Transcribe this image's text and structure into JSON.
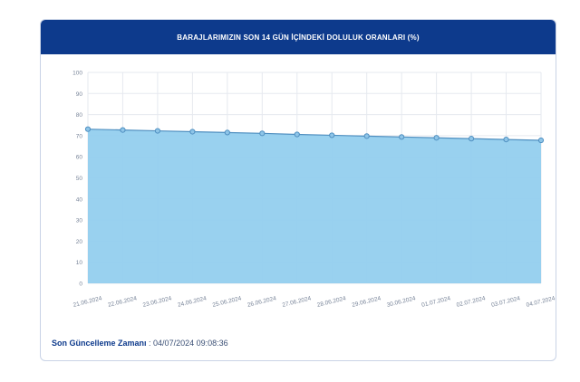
{
  "header": {
    "title": "BARAJLARIMIZIN SON 14 GÜN İÇİNDEKİ DOLULUK ORANLARI (%)"
  },
  "footer": {
    "label": "Son Güncelleme Zamanı",
    "separator": " : ",
    "value": "04/07/2024 09:08:36"
  },
  "colors": {
    "header_bg": "#0d3a8c",
    "area_fill": "#93cfee",
    "line": "#4f8fc0",
    "point_fill": "#8ec5e8"
  },
  "chart_data": {
    "type": "area",
    "title": "BARAJLARIMIZIN SON 14 GÜN İÇİNDEKİ DOLULUK ORANLARI (%)",
    "categories": [
      "21.06.2024",
      "22.06.2024",
      "23.06.2024",
      "24.06.2024",
      "25.06.2024",
      "26.06.2024",
      "27.06.2024",
      "28.06.2024",
      "29.06.2024",
      "30.06.2024",
      "01.07.2024",
      "02.07.2024",
      "03.07.2024",
      "04.07.2024"
    ],
    "values": [
      73.1,
      72.7,
      72.3,
      71.9,
      71.5,
      71.1,
      70.6,
      70.2,
      69.8,
      69.4,
      69.0,
      68.6,
      68.2,
      67.8
    ],
    "ylim": [
      0,
      100
    ],
    "yticks": [
      0,
      10,
      20,
      30,
      40,
      50,
      60,
      70,
      80,
      90,
      100
    ],
    "grid": true
  }
}
